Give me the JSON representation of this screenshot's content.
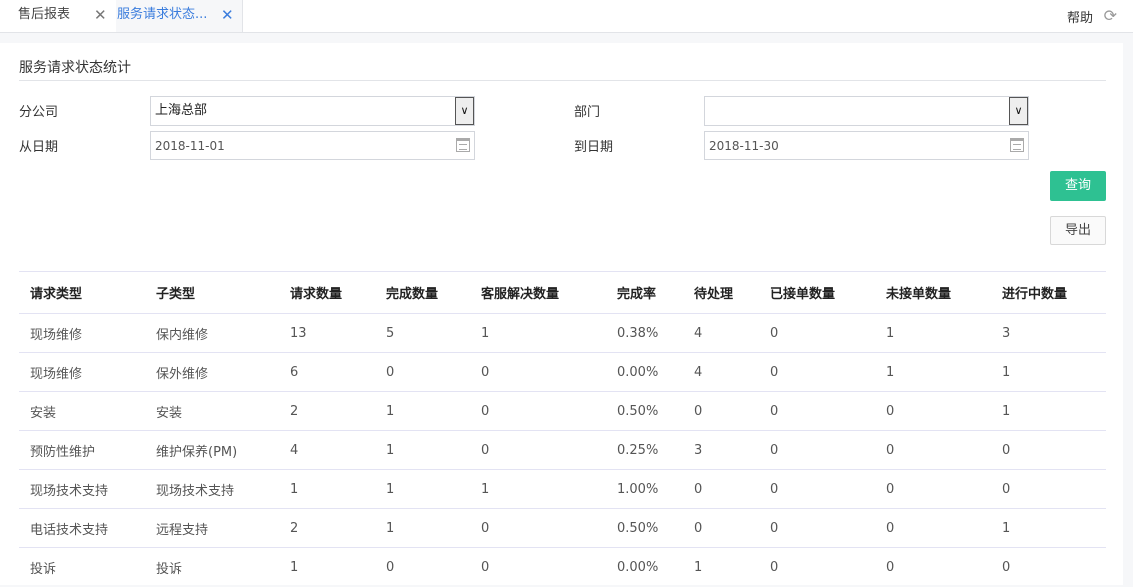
{
  "tabs": [
    {
      "label": "售后报表",
      "active": false
    },
    {
      "label": "服务请求状态...",
      "active": true
    }
  ],
  "header": {
    "help_label": "帮助",
    "refresh_icon": "refresh-icon"
  },
  "panel": {
    "title": "服务请求状态统计",
    "filters": {
      "branch_label": "分公司",
      "branch_value": "上海总部",
      "dept_label": "部门",
      "dept_value": "",
      "from_label": "从日期",
      "from_value": "2018-11-01",
      "to_label": "到日期",
      "to_value": "2018-11-30"
    },
    "query_label": "查询",
    "export_label": "导出",
    "accent_color": "#2ec192"
  },
  "table": {
    "columns": [
      "请求类型",
      "子类型",
      "请求数量",
      "完成数量",
      "客服解决数量",
      "完成率",
      "待处理",
      "已接单数量",
      "未接单数量",
      "进行中数量"
    ],
    "rows": [
      [
        "现场维修",
        "保内维修",
        "13",
        "5",
        "1",
        "0.38%",
        "4",
        "0",
        "1",
        "3"
      ],
      [
        "现场维修",
        "保外维修",
        "6",
        "0",
        "0",
        "0.00%",
        "4",
        "0",
        "1",
        "1"
      ],
      [
        "安装",
        "安装",
        "2",
        "1",
        "0",
        "0.50%",
        "0",
        "0",
        "0",
        "1"
      ],
      [
        "预防性维护",
        "维护保养(PM)",
        "4",
        "1",
        "0",
        "0.25%",
        "3",
        "0",
        "0",
        "0"
      ],
      [
        "现场技术支持",
        "现场技术支持",
        "1",
        "1",
        "1",
        "1.00%",
        "0",
        "0",
        "0",
        "0"
      ],
      [
        "电话技术支持",
        "远程支持",
        "2",
        "1",
        "0",
        "0.50%",
        "0",
        "0",
        "0",
        "1"
      ],
      [
        "投诉",
        "投诉",
        "1",
        "0",
        "0",
        "0.00%",
        "1",
        "0",
        "0",
        "0"
      ]
    ]
  }
}
